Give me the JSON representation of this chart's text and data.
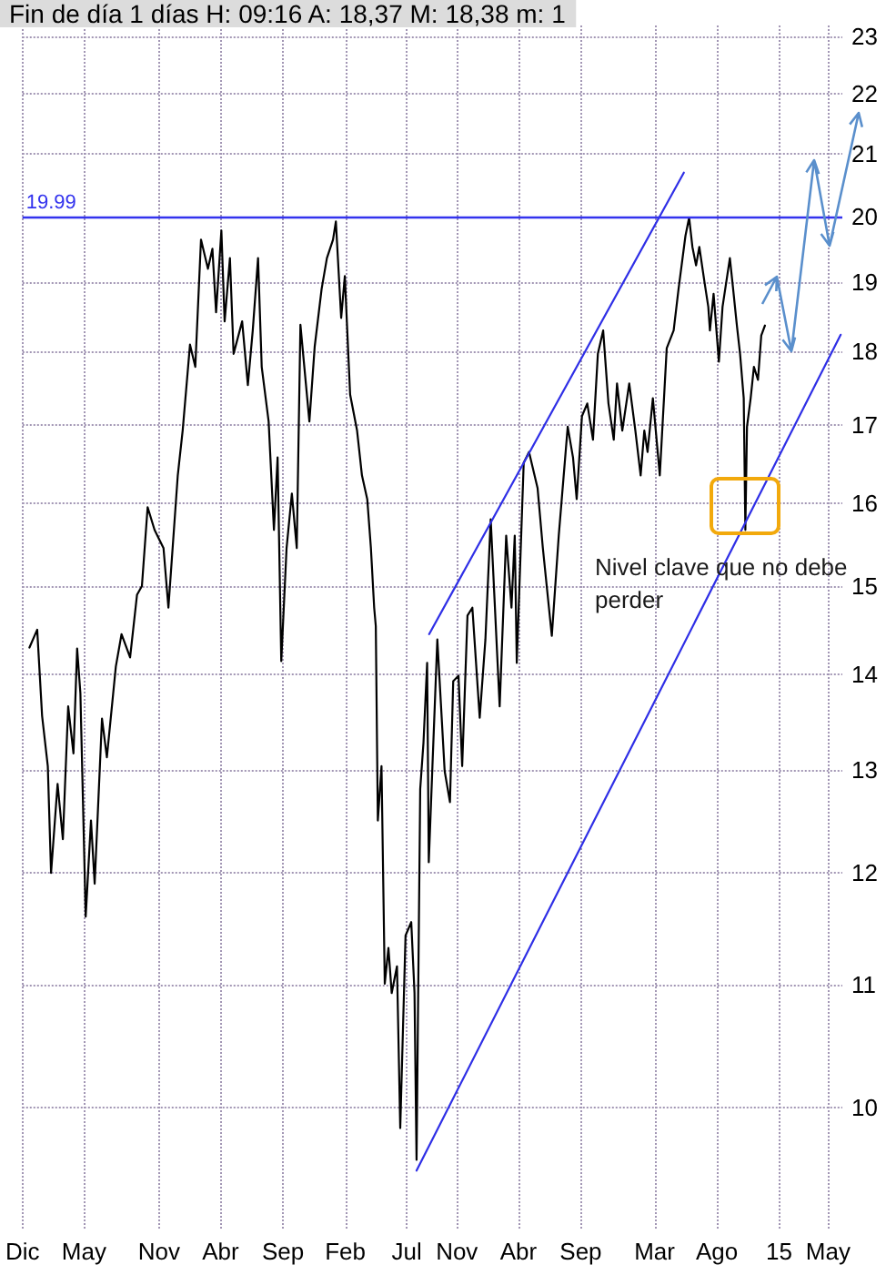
{
  "chart_data": {
    "type": "line",
    "title": "Fin de día 1 días H: 09:16 A: 18,37 M: 18,38 m: 1",
    "annotations": [
      "Nivel clave que no debe perder"
    ],
    "series": [
      {
        "color": "#000000",
        "x": [
          "2009-12-18",
          "2010-01-06",
          "2010-01-18",
          "2010-02-01",
          "2010-02-09",
          "2010-02-25",
          "2010-03-10",
          "2010-03-23",
          "2010-04-05",
          "2010-04-14",
          "2010-04-22",
          "2010-05-05",
          "2010-05-18",
          "2010-05-27",
          "2010-06-14",
          "2010-06-26",
          "2010-07-18",
          "2010-08-01",
          "2010-08-22",
          "2010-09-08",
          "2010-09-20",
          "2010-10-04",
          "2010-10-21",
          "2010-11-12",
          "2010-11-24",
          "2010-12-17",
          "2010-12-29",
          "2011-01-16",
          "2011-01-29",
          "2011-02-12",
          "2011-03-01",
          "2011-03-12",
          "2011-03-21",
          "2011-04-03",
          "2011-04-11",
          "2011-04-24",
          "2011-05-03",
          "2011-05-24",
          "2011-06-07",
          "2011-06-19",
          "2011-07-02",
          "2011-07-11",
          "2011-07-28",
          "2011-08-10",
          "2011-08-19",
          "2011-08-28",
          "2011-09-10",
          "2011-09-23",
          "2011-10-05",
          "2011-10-14",
          "2011-11-05",
          "2011-11-18",
          "2011-12-05",
          "2011-12-18",
          "2012-01-02",
          "2012-01-09",
          "2012-01-22",
          "2012-01-31",
          "2012-02-13",
          "2012-03-01",
          "2012-03-13",
          "2012-03-26",
          "2012-04-04",
          "2012-04-12",
          "2012-04-16",
          "2012-04-21",
          "2012-04-30",
          "2012-05-08",
          "2012-05-17",
          "2012-05-25",
          "2012-06-07",
          "2012-06-15",
          "2012-06-28",
          "2012-07-12",
          "2012-07-20",
          "2012-07-25",
          "2012-08-03",
          "2012-08-11",
          "2012-08-20",
          "2012-08-24",
          "2012-09-02",
          "2012-09-14",
          "2012-10-02",
          "2012-10-15",
          "2012-10-23",
          "2012-11-05",
          "2012-11-14",
          "2012-11-27",
          "2012-12-09",
          "2012-12-27",
          "2013-01-10",
          "2013-01-23",
          "2013-02-14",
          "2013-03-02",
          "2013-03-15",
          "2013-03-23",
          "2013-03-28",
          "2013-04-14",
          "2013-04-27",
          "2013-05-18",
          "2013-05-31",
          "2013-06-22",
          "2013-07-09",
          "2013-07-31",
          "2013-08-13",
          "2013-08-22",
          "2013-09-04",
          "2013-09-17",
          "2013-10-01",
          "2013-10-13",
          "2013-10-26",
          "2013-11-08",
          "2013-11-21",
          "2013-11-29",
          "2013-12-12",
          "2013-12-29",
          "2014-01-13",
          "2014-01-26",
          "2014-02-04",
          "2014-02-12",
          "2014-02-25",
          "2014-03-14",
          "2014-03-31",
          "2014-04-17",
          "2014-04-29",
          "2014-05-16",
          "2014-05-25",
          "2014-06-02",
          "2014-06-11",
          "2014-06-19",
          "2014-07-02",
          "2014-07-11",
          "2014-07-15",
          "2014-07-24",
          "2014-08-06",
          "2014-08-15",
          "2014-09-02",
          "2014-09-10",
          "2014-09-19",
          "2014-09-27",
          "2014-10-06",
          "2014-10-10",
          "2014-10-14",
          "2014-10-23",
          "2014-10-31",
          "2014-11-10",
          "2014-11-18",
          "2014-11-27"
        ],
        "values": [
          14.3,
          14.5,
          13.56,
          13.04,
          12.0,
          12.86,
          12.32,
          13.66,
          13.17,
          14.29,
          13.8,
          11.6,
          12.5,
          11.9,
          13.53,
          13.13,
          14.09,
          14.45,
          14.19,
          14.9,
          15.0,
          15.95,
          15.67,
          15.45,
          14.75,
          16.35,
          16.93,
          18.1,
          17.79,
          19.64,
          19.2,
          19.5,
          18.56,
          19.78,
          18.43,
          19.36,
          17.97,
          18.43,
          17.54,
          18.3,
          19.36,
          17.79,
          17.05,
          15.67,
          16.58,
          14.15,
          15.45,
          16.12,
          15.45,
          18.38,
          17.05,
          18.07,
          18.9,
          19.36,
          19.64,
          19.92,
          18.48,
          19.09,
          17.41,
          16.93,
          16.35,
          16.05,
          15.45,
          14.75,
          14.54,
          12.5,
          13.04,
          11.01,
          11.32,
          10.93,
          11.16,
          9.84,
          11.43,
          11.55,
          10.93,
          9.6,
          12.81,
          13.28,
          14.13,
          12.1,
          13.04,
          14.39,
          12.99,
          12.68,
          13.93,
          13.99,
          13.04,
          14.66,
          14.75,
          13.54,
          14.39,
          15.8,
          13.66,
          15.6,
          14.75,
          15.6,
          14.13,
          16.51,
          16.65,
          16.19,
          15.45,
          14.43,
          15.6,
          16.98,
          16.58,
          16.05,
          17.12,
          17.29,
          16.81,
          17.97,
          18.3,
          17.29,
          16.81,
          17.56,
          16.93,
          17.56,
          16.93,
          16.35,
          16.93,
          16.65,
          17.36,
          16.35,
          18.05,
          18.3,
          18.9,
          19.7,
          19.98,
          19.53,
          19.25,
          19.53,
          18.99,
          18.64,
          18.3,
          18.83,
          17.86,
          18.64,
          19.36,
          18.9,
          18.38,
          17.97,
          17.36,
          15.67,
          16.98,
          17.36,
          17.79,
          17.61,
          18.23,
          18.37
        ]
      },
      {
        "color": "#2f2fe6",
        "x": [
          "2012-08-25",
          "2014-05-12"
        ],
        "values": [
          14.45,
          20.69
        ]
      },
      {
        "color": "#2f2fe6",
        "x": [
          "2012-07-25",
          "2015-06-01"
        ],
        "values": [
          9.52,
          18.24
        ]
      }
    ],
    "xlim": [
      "2009-12-01",
      "2015-06-05"
    ],
    "xticks": [
      {
        "value": "2009-12-01",
        "label": "Dic"
      },
      {
        "value": "2010-05-01",
        "label": "May"
      },
      {
        "value": "2010-11-01",
        "label": "Nov"
      },
      {
        "value": "2011-04-01",
        "label": "Abr"
      },
      {
        "value": "2011-09-01",
        "label": "Sep"
      },
      {
        "value": "2012-02-01",
        "label": "Feb"
      },
      {
        "value": "2012-07-01",
        "label": "Jul"
      },
      {
        "value": "2012-11-01",
        "label": "Nov"
      },
      {
        "value": "2013-04-01",
        "label": "Abr"
      },
      {
        "value": "2013-09-01",
        "label": "Sep"
      },
      {
        "value": "2014-03-01",
        "label": "Mar"
      },
      {
        "value": "2014-08-01",
        "label": "Ago"
      },
      {
        "value": "2015-01-01",
        "label": "15"
      },
      {
        "value": "2015-05-01",
        "label": "May"
      }
    ],
    "ylim": [
      9.1,
      23.2
    ],
    "yticks": [
      10,
      11,
      12,
      13,
      14,
      15,
      16,
      17,
      18,
      19,
      20,
      21,
      22,
      23
    ],
    "log": "y",
    "grid": true,
    "marker": "none",
    "ref_lines": [
      {
        "axis": "y",
        "value": 19.99,
        "label": "19.99",
        "color": "#3333ee"
      }
    ]
  }
}
